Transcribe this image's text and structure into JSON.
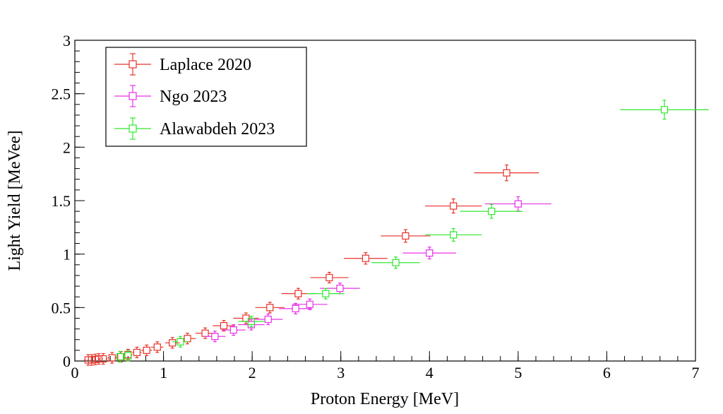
{
  "chart_data": {
    "type": "scatter",
    "title": "",
    "xlabel": "Proton Energy [MeV]",
    "ylabel": "Light Yield [MeVee]",
    "xlim": [
      0,
      7
    ],
    "ylim": [
      0,
      3
    ],
    "x_ticks": [
      "0",
      "1",
      "2",
      "3",
      "4",
      "5",
      "6",
      "7"
    ],
    "y_ticks": [
      "0",
      "0.5",
      "1",
      "1.5",
      "2",
      "2.5",
      "3"
    ],
    "grid": false,
    "legend_position": "top-left",
    "marker": "open-square",
    "series": [
      {
        "name": "Laplace 2020",
        "color": "#e8332a",
        "points": [
          {
            "x": 0.15,
            "y": 0.01
          },
          {
            "x": 0.19,
            "y": 0.01
          },
          {
            "x": 0.23,
            "y": 0.015
          },
          {
            "x": 0.27,
            "y": 0.02
          },
          {
            "x": 0.32,
            "y": 0.02
          },
          {
            "x": 0.42,
            "y": 0.03
          },
          {
            "x": 0.52,
            "y": 0.04
          },
          {
            "x": 0.6,
            "y": 0.06
          },
          {
            "x": 0.7,
            "y": 0.08
          },
          {
            "x": 0.81,
            "y": 0.1
          },
          {
            "x": 0.93,
            "y": 0.13
          },
          {
            "x": 1.1,
            "y": 0.17
          },
          {
            "x": 1.27,
            "y": 0.21
          },
          {
            "x": 1.47,
            "y": 0.26
          },
          {
            "x": 1.68,
            "y": 0.33
          },
          {
            "x": 1.93,
            "y": 0.4
          },
          {
            "x": 2.2,
            "y": 0.5
          },
          {
            "x": 2.52,
            "y": 0.63
          },
          {
            "x": 2.87,
            "y": 0.78
          },
          {
            "x": 3.28,
            "y": 0.96
          },
          {
            "x": 3.73,
            "y": 1.17
          },
          {
            "x": 4.27,
            "y": 1.45
          },
          {
            "x": 4.87,
            "y": 1.76
          }
        ]
      },
      {
        "name": "Ngo 2023",
        "color": "#e830e8",
        "points": [
          {
            "x": 1.58,
            "y": 0.23
          },
          {
            "x": 1.79,
            "y": 0.29
          },
          {
            "x": 1.99,
            "y": 0.34
          },
          {
            "x": 2.18,
            "y": 0.39
          },
          {
            "x": 2.49,
            "y": 0.49
          },
          {
            "x": 2.65,
            "y": 0.53
          },
          {
            "x": 2.99,
            "y": 0.68
          },
          {
            "x": 4.0,
            "y": 1.01
          },
          {
            "x": 5.0,
            "y": 1.47
          }
        ]
      },
      {
        "name": "Alawabdeh 2023",
        "color": "#2ee82e",
        "points": [
          {
            "x": 0.51,
            "y": 0.04
          },
          {
            "x": 0.6,
            "y": 0.05
          },
          {
            "x": 1.19,
            "y": 0.18
          },
          {
            "x": 1.99,
            "y": 0.37
          },
          {
            "x": 2.83,
            "y": 0.63
          },
          {
            "x": 3.62,
            "y": 0.92
          },
          {
            "x": 4.27,
            "y": 1.18
          },
          {
            "x": 4.7,
            "y": 1.4
          },
          {
            "x": 6.65,
            "y": 2.35
          }
        ]
      }
    ]
  }
}
